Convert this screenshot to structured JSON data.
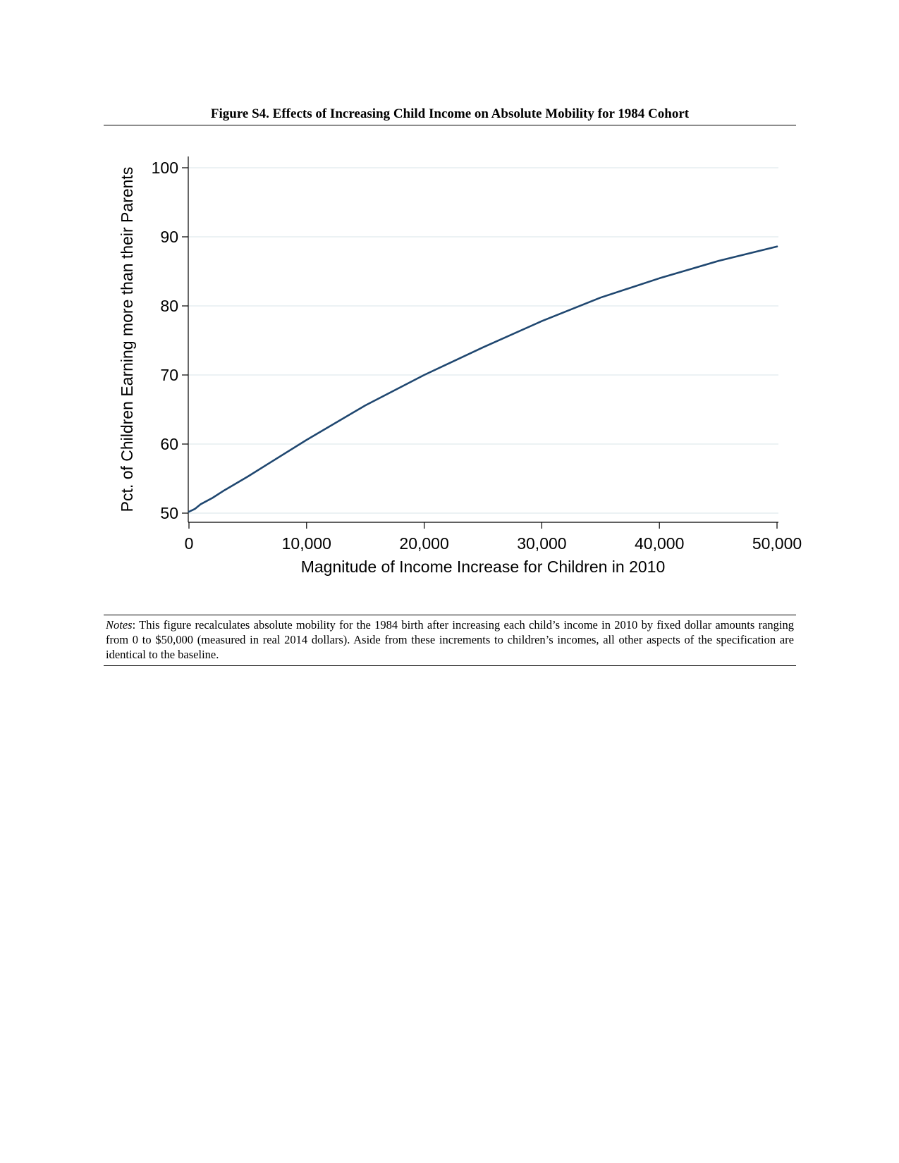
{
  "figure": {
    "title": "Figure S4. Effects of Increasing Child Income on Absolute Mobility for 1984 Cohort"
  },
  "notes": {
    "label": "Notes",
    "text": ": This figure recalculates absolute mobility for the 1984 birth after increasing each child’s income in 2010 by fixed dollar amounts ranging from 0 to $50,000 (measured in real 2014 dollars). Aside from these increments to children’s incomes, all other aspects of the specification are identical to the baseline."
  },
  "chart_data": {
    "type": "line",
    "title": "",
    "xlabel": "Magnitude of Income Increase for Children in 2010",
    "ylabel": "Pct. of Children Earning more than their Parents",
    "xlim": [
      0,
      50000
    ],
    "ylim": [
      50,
      100
    ],
    "grid": true,
    "legend": "none",
    "xticks": [
      {
        "value": 0,
        "label": "0"
      },
      {
        "value": 10000,
        "label": "10,000"
      },
      {
        "value": 20000,
        "label": "20,000"
      },
      {
        "value": 30000,
        "label": "30,000"
      },
      {
        "value": 40000,
        "label": "40,000"
      },
      {
        "value": 50000,
        "label": "50,000"
      }
    ],
    "yticks": [
      {
        "value": 50,
        "label": "50"
      },
      {
        "value": 60,
        "label": "60"
      },
      {
        "value": 70,
        "label": "70"
      },
      {
        "value": 80,
        "label": "80"
      },
      {
        "value": 90,
        "label": "90"
      },
      {
        "value": 100,
        "label": "100"
      }
    ],
    "series": [
      {
        "color": "#1f4770",
        "x": [
          0,
          500,
          1000,
          2000,
          3000,
          5000,
          10000,
          15000,
          20000,
          25000,
          30000,
          35000,
          40000,
          45000,
          50000
        ],
        "y": [
          50.2,
          50.6,
          51.3,
          52.2,
          53.3,
          55.3,
          60.6,
          65.6,
          70.0,
          74.0,
          77.8,
          81.2,
          84.0,
          86.5,
          88.6
        ]
      }
    ]
  }
}
